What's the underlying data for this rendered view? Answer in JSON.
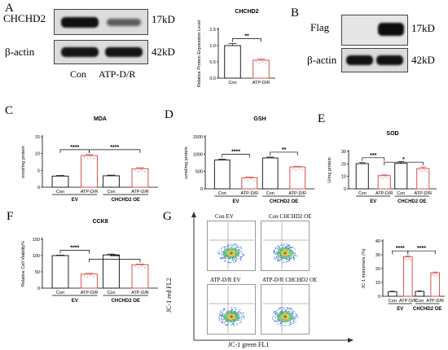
{
  "panels": {
    "A": {
      "letter": "A",
      "blot": {
        "rows": [
          {
            "label": "CHCHD2",
            "size": "17kD"
          },
          {
            "label": "β-actin",
            "size": "42kD"
          }
        ],
        "lanes": [
          "Con",
          "ATP-D/R"
        ]
      },
      "chart_title": "CHCHD2"
    },
    "B": {
      "letter": "B",
      "blot": {
        "rows": [
          {
            "label": "Flag",
            "size": "17kD"
          },
          {
            "label": "β-actin",
            "size": "42kD"
          }
        ]
      }
    },
    "C": {
      "letter": "C",
      "chart_title": "MDA"
    },
    "D": {
      "letter": "D",
      "chart_title": "GSH"
    },
    "E": {
      "letter": "E",
      "chart_title": "SOD"
    },
    "F": {
      "letter": "F",
      "chart_title": "CCK8"
    },
    "G": {
      "letter": "G",
      "plots": [
        {
          "label": "Con EV"
        },
        {
          "label": "Con CHCHD2 OE"
        },
        {
          "label": "ATP-D/R EV"
        },
        {
          "label": "ATP-D/R CHCHD2 OE"
        }
      ],
      "y_axis_label": "JC-1 red FL2",
      "x_axis_label": "JC-1 green FL1",
      "chart_title": ""
    }
  },
  "chart_data": [
    {
      "id": "A",
      "type": "bar",
      "title": "CHCHD2",
      "ylabel": "Relative Protein Expression Level",
      "xlabel": "",
      "categories": [
        "Con",
        "ATP-D/R"
      ],
      "values": [
        1.0,
        0.55
      ],
      "errors": [
        0.06,
        0.04
      ],
      "ylim": [
        0,
        1.5
      ],
      "yticks": [
        "0.0",
        "0.5",
        "1.0",
        "1.5"
      ],
      "groups": [],
      "significance": [
        {
          "from": 0,
          "to": 1,
          "label": "**"
        }
      ],
      "colors": [
        "#222222",
        "#d9534f"
      ]
    },
    {
      "id": "C",
      "type": "bar",
      "title": "MDA",
      "ylabel": "nmol/mg protein",
      "xlabel": "",
      "categories": [
        "Con",
        "ATP-D/R",
        "Con",
        "ATP-D/R"
      ],
      "values": [
        3.3,
        9.4,
        3.4,
        5.5
      ],
      "errors": [
        0.2,
        0.3,
        0.2,
        0.3
      ],
      "ylim": [
        0,
        15
      ],
      "yticks": [
        "0",
        "5",
        "10",
        "15"
      ],
      "groups": [
        {
          "label": "EV",
          "from": 0,
          "to": 1
        },
        {
          "label": "CHCHD2 OE",
          "from": 2,
          "to": 3
        }
      ],
      "significance": [
        {
          "from": 0,
          "to": 1,
          "label": "****"
        },
        {
          "from": 1,
          "to": 3,
          "label": "****"
        }
      ],
      "colors": [
        "#222222",
        "#d9534f",
        "#222222",
        "#d9534f"
      ]
    },
    {
      "id": "D",
      "type": "bar",
      "title": "GSH",
      "ylabel": "umol/mg protein",
      "xlabel": "",
      "categories": [
        "Con",
        "ATP-D/R",
        "Con",
        "ATP-D/R"
      ],
      "values": [
        830,
        320,
        890,
        630
      ],
      "errors": [
        25,
        20,
        25,
        20
      ],
      "ylim": [
        0,
        1500
      ],
      "yticks": [
        "0",
        "500",
        "1000",
        "1500"
      ],
      "groups": [
        {
          "label": "EV",
          "from": 0,
          "to": 1
        },
        {
          "label": "CHCHD2 OE",
          "from": 2,
          "to": 3
        }
      ],
      "significance": [
        {
          "from": 0,
          "to": 1,
          "label": "****"
        },
        {
          "from": 2,
          "to": 3,
          "label": "**"
        }
      ],
      "colors": [
        "#222222",
        "#d9534f",
        "#222222",
        "#d9534f"
      ]
    },
    {
      "id": "E",
      "type": "bar",
      "title": "SOD",
      "ylabel": "U/mg protein",
      "xlabel": "",
      "categories": [
        "Con",
        "ATP-D/R",
        "Con",
        "ATP-D/R"
      ],
      "values": [
        20.2,
        10.6,
        20.4,
        16.3
      ],
      "errors": [
        0.8,
        0.6,
        1.4,
        1.2
      ],
      "ylim": [
        0,
        30
      ],
      "yticks": [
        "0",
        "10",
        "20",
        "30"
      ],
      "groups": [
        {
          "label": "EV",
          "from": 0,
          "to": 1
        },
        {
          "label": "CHCHD2 OE",
          "from": 2,
          "to": 3
        }
      ],
      "significance": [
        {
          "from": 0,
          "to": 1,
          "label": "***"
        },
        {
          "from": 1,
          "to": 3,
          "label": "*"
        }
      ],
      "colors": [
        "#222222",
        "#d9534f",
        "#222222",
        "#d9534f"
      ]
    },
    {
      "id": "F",
      "type": "bar",
      "title": "CCK8",
      "ylabel": "Relative Cell Viability%",
      "xlabel": "",
      "categories": [
        "Con",
        "ATP-D/R",
        "Con",
        "ATP-D/R"
      ],
      "values": [
        100,
        43,
        102,
        72
      ],
      "errors": [
        1.5,
        2.5,
        2.5,
        2
      ],
      "ylim": [
        0,
        150
      ],
      "yticks": [
        "0",
        "50",
        "100",
        "150"
      ],
      "groups": [
        {
          "label": "EV",
          "from": 0,
          "to": 1
        },
        {
          "label": "CHCHD2 OE",
          "from": 2,
          "to": 3
        }
      ],
      "significance": [
        {
          "from": 0,
          "to": 1,
          "label": "****"
        },
        {
          "from": 1,
          "to": 3,
          "label": "****"
        }
      ],
      "colors": [
        "#222222",
        "#d9534f",
        "#222222",
        "#d9534f"
      ]
    },
    {
      "id": "G",
      "type": "bar",
      "title": "",
      "ylabel": "JC-1 monomers (%)",
      "xlabel": "",
      "categories": [
        "Con",
        "ATP-D/R",
        "Con",
        "ATP-D/R"
      ],
      "values": [
        3.3,
        28.5,
        3.5,
        17.0
      ],
      "errors": [
        0.4,
        0.8,
        0.4,
        0.5
      ],
      "ylim": [
        0,
        40
      ],
      "yticks": [
        "0",
        "10",
        "20",
        "30",
        "40"
      ],
      "groups": [
        {
          "label": "EV",
          "from": 0,
          "to": 1
        },
        {
          "label": "CHCHD2 OE",
          "from": 2,
          "to": 3
        }
      ],
      "significance": [
        {
          "from": 0,
          "to": 1,
          "label": "****"
        },
        {
          "from": 1,
          "to": 3,
          "label": "****"
        }
      ],
      "colors": [
        "#222222",
        "#d9534f",
        "#222222",
        "#d9534f"
      ]
    }
  ]
}
